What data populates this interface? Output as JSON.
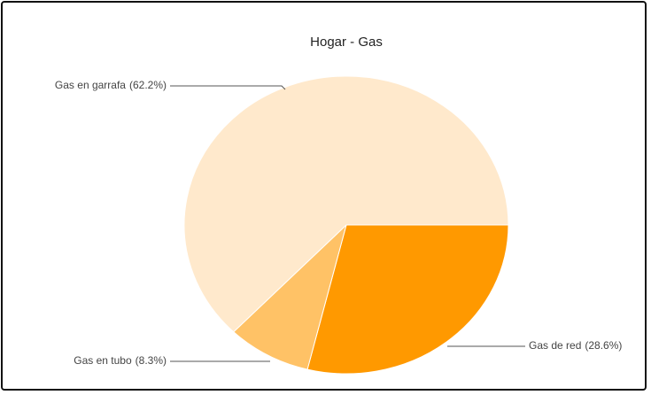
{
  "chart_data": {
    "type": "pie",
    "title": "Hogar - Gas",
    "categories": [
      "Gas de red",
      "Gas en tubo",
      "Gas en garrafa"
    ],
    "values": [
      28.6,
      8.3,
      62.2
    ],
    "value_labels": [
      "(28.6%)",
      "(8.3%)",
      "(62.2%)"
    ],
    "colors": [
      "#ff9900",
      "#ffc266",
      "#ffe9cc"
    ]
  }
}
